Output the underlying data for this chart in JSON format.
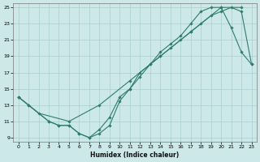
{
  "xlabel": "Humidex (Indice chaleur)",
  "xlim": [
    -0.5,
    23.5
  ],
  "ylim": [
    8.5,
    25.5
  ],
  "xticks": [
    0,
    1,
    2,
    3,
    4,
    5,
    6,
    7,
    8,
    9,
    10,
    11,
    12,
    13,
    14,
    15,
    16,
    17,
    18,
    19,
    20,
    21,
    22,
    23
  ],
  "yticks": [
    9,
    11,
    13,
    15,
    17,
    19,
    21,
    23,
    25
  ],
  "background_color": "#cce8e8",
  "grid_color": "#aacece",
  "line_color": "#2e7d6e",
  "line1_x": [
    0,
    1,
    3,
    4,
    5,
    6,
    7,
    8,
    9,
    10,
    11,
    12,
    13,
    14,
    15,
    16,
    17,
    18,
    19,
    20,
    21,
    22,
    23
  ],
  "line1_y": [
    14,
    13,
    11,
    10.5,
    10.5,
    9.5,
    9,
    9.5,
    10.5,
    13.5,
    15,
    16.5,
    18,
    19,
    20,
    21,
    22,
    23,
    24,
    24.5,
    25,
    24.5,
    18
  ],
  "line2_x": [
    0,
    1,
    3,
    4,
    5,
    6,
    7,
    8,
    9,
    10,
    11,
    12,
    13,
    14,
    15,
    16,
    17,
    18,
    19,
    20,
    21,
    22,
    23
  ],
  "line2_y": [
    14,
    13,
    11,
    10.5,
    10.5,
    9.5,
    9,
    10,
    11.5,
    14,
    15,
    17,
    18,
    19.5,
    20.5,
    21.5,
    23,
    24.5,
    25,
    25,
    22.5,
    19.5,
    18
  ],
  "line3_x": [
    0,
    2,
    5,
    8,
    11,
    14,
    17,
    20,
    22
  ],
  "line3_y": [
    14,
    12,
    11,
    13,
    16,
    19,
    22,
    25,
    25
  ]
}
